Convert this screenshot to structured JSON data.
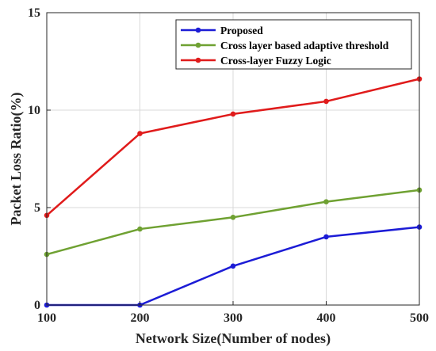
{
  "chart_data": {
    "type": "line",
    "title": "",
    "xlabel": "Network Size(Number of nodes)",
    "ylabel": "Packet Loss Ratio(%)",
    "x": [
      100,
      200,
      300,
      400,
      500
    ],
    "xlim": [
      100,
      500
    ],
    "ylim": [
      0,
      15
    ],
    "xticks": [
      100,
      200,
      300,
      400,
      500
    ],
    "yticks": [
      0,
      5,
      10,
      15
    ],
    "grid": true,
    "legend_position": "top-right",
    "series": [
      {
        "name": "Proposed",
        "color": "#1c1cd6",
        "values": [
          0,
          0,
          2.0,
          3.5,
          4.0
        ]
      },
      {
        "name": "Cross layer based adaptive threshold",
        "color": "#6fa132",
        "values": [
          2.6,
          3.9,
          4.5,
          5.3,
          5.9
        ]
      },
      {
        "name": "Cross-layer Fuzzy Logic",
        "color": "#e01b1b",
        "values": [
          4.6,
          8.8,
          9.8,
          10.45,
          11.6
        ]
      }
    ]
  }
}
